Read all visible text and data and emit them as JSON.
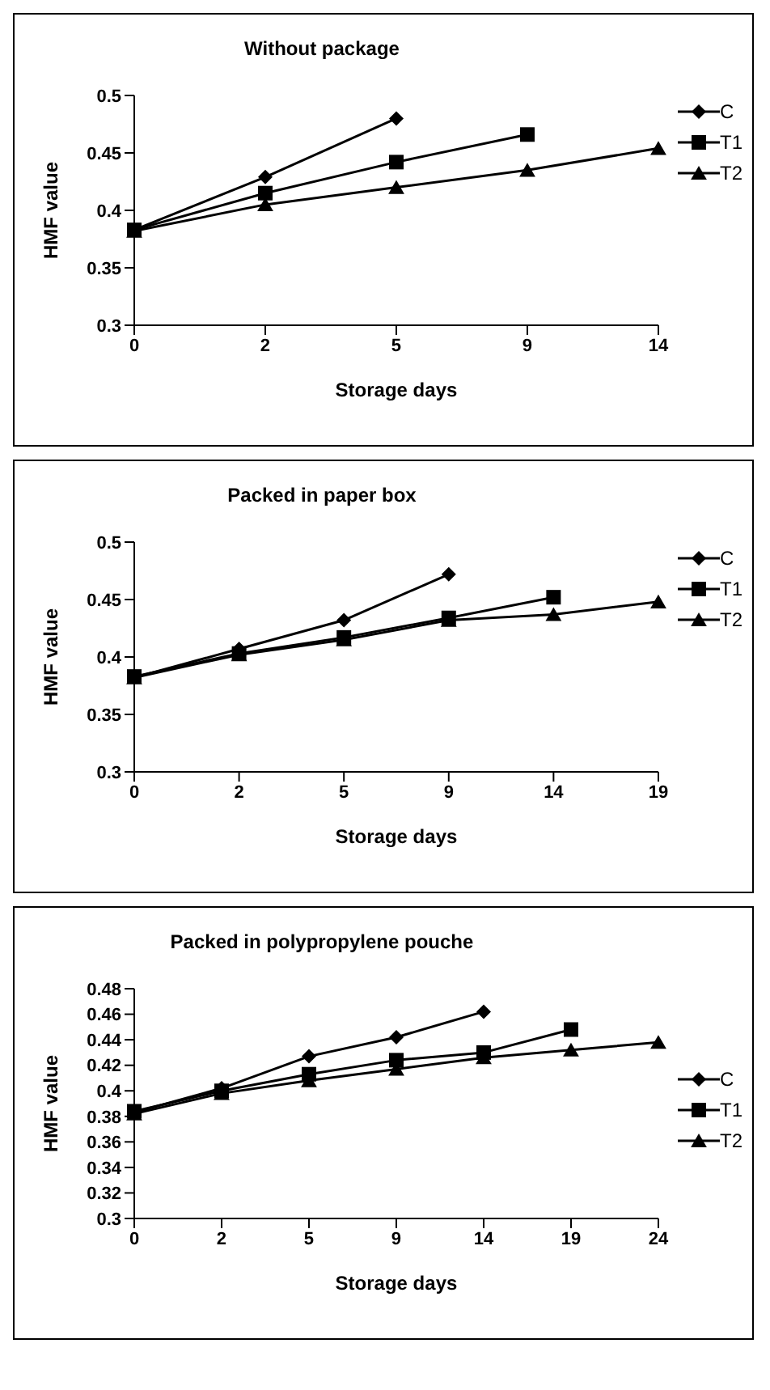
{
  "chart_data": [
    {
      "type": "line",
      "title": "Without package",
      "xlabel": "Storage days",
      "ylabel": "HMF value",
      "categories": [
        "0",
        "2",
        "5",
        "9",
        "14"
      ],
      "ylim": [
        0.3,
        0.5
      ],
      "yticks": [
        0.3,
        0.35,
        0.4,
        0.45,
        0.5
      ],
      "grid": false,
      "legend": "top right",
      "line_style": "solid",
      "series": [
        {
          "name": "C",
          "color": "#000000",
          "marker": "diamond",
          "values": [
            0.383,
            0.429,
            0.48,
            null,
            null
          ]
        },
        {
          "name": "T1",
          "color": "#000000",
          "marker": "square",
          "values": [
            0.383,
            0.415,
            0.442,
            0.466,
            null
          ]
        },
        {
          "name": "T2",
          "color": "#000000",
          "marker": "triangle",
          "values": [
            0.382,
            0.405,
            0.42,
            0.435,
            0.454
          ]
        }
      ]
    },
    {
      "type": "line",
      "title": "Packed in paper box",
      "xlabel": "Storage days",
      "ylabel": "HMF value",
      "categories": [
        "0",
        "2",
        "5",
        "9",
        "14",
        "19"
      ],
      "ylim": [
        0.3,
        0.5
      ],
      "yticks": [
        0.3,
        0.35,
        0.4,
        0.45,
        0.5
      ],
      "grid": false,
      "legend": "top right",
      "line_style": "solid",
      "series": [
        {
          "name": "C",
          "color": "#000000",
          "marker": "diamond",
          "values": [
            0.382,
            0.407,
            0.432,
            0.472,
            null,
            null
          ]
        },
        {
          "name": "T1",
          "color": "#000000",
          "marker": "square",
          "values": [
            0.383,
            0.403,
            0.417,
            0.434,
            0.452,
            null
          ]
        },
        {
          "name": "T2",
          "color": "#000000",
          "marker": "triangle",
          "values": [
            0.382,
            0.402,
            0.415,
            0.432,
            0.437,
            0.448
          ]
        }
      ]
    },
    {
      "type": "line",
      "title": "Packed in polypropylene pouche",
      "xlabel": "Storage days",
      "ylabel": "HMF value",
      "categories": [
        "0",
        "2",
        "5",
        "9",
        "14",
        "19",
        "24"
      ],
      "ylim": [
        0.3,
        0.48
      ],
      "yticks": [
        0.3,
        0.32,
        0.34,
        0.36,
        0.38,
        0.4,
        0.42,
        0.44,
        0.46,
        0.48
      ],
      "grid": false,
      "legend": "right",
      "line_style": "solid",
      "series": [
        {
          "name": "C",
          "color": "#000000",
          "marker": "diamond",
          "values": [
            0.383,
            0.402,
            0.427,
            0.442,
            0.462,
            null,
            null
          ]
        },
        {
          "name": "T1",
          "color": "#000000",
          "marker": "square",
          "values": [
            0.384,
            0.4,
            0.413,
            0.424,
            0.43,
            0.448,
            null
          ]
        },
        {
          "name": "T2",
          "color": "#000000",
          "marker": "triangle",
          "values": [
            0.382,
            0.398,
            0.408,
            0.417,
            0.426,
            0.432,
            0.438
          ]
        }
      ]
    }
  ]
}
